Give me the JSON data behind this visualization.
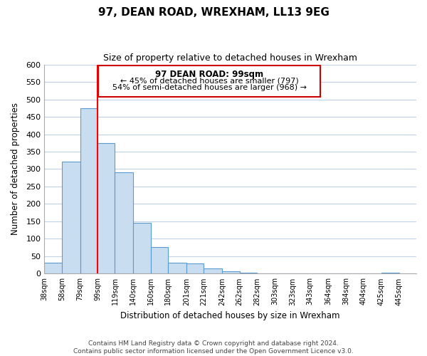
{
  "title": "97, DEAN ROAD, WREXHAM, LL13 9EG",
  "subtitle": "Size of property relative to detached houses in Wrexham",
  "xlabel": "Distribution of detached houses by size in Wrexham",
  "ylabel": "Number of detached properties",
  "bar_left_edges": [
    38,
    58,
    79,
    99,
    119,
    140,
    160,
    180,
    201,
    221,
    242,
    262,
    282,
    303,
    323,
    343,
    364,
    384,
    404,
    425
  ],
  "bar_heights": [
    32,
    322,
    474,
    374,
    291,
    145,
    76,
    32,
    30,
    16,
    8,
    2,
    1,
    0,
    0,
    0,
    0,
    0,
    0,
    3
  ],
  "bar_widths": [
    20,
    21,
    20,
    20,
    21,
    20,
    20,
    21,
    20,
    21,
    20,
    20,
    21,
    20,
    20,
    21,
    20,
    20,
    21,
    20
  ],
  "tick_labels": [
    "38sqm",
    "58sqm",
    "79sqm",
    "99sqm",
    "119sqm",
    "140sqm",
    "160sqm",
    "180sqm",
    "201sqm",
    "221sqm",
    "242sqm",
    "262sqm",
    "282sqm",
    "303sqm",
    "323sqm",
    "343sqm",
    "364sqm",
    "384sqm",
    "404sqm",
    "425sqm",
    "445sqm"
  ],
  "bar_color": "#c9ddf0",
  "bar_edge_color": "#5b9bd5",
  "vline_x": 99,
  "vline_color": "#ff0000",
  "ylim": [
    0,
    600
  ],
  "yticks": [
    0,
    50,
    100,
    150,
    200,
    250,
    300,
    350,
    400,
    450,
    500,
    550,
    600
  ],
  "annotation_title": "97 DEAN ROAD: 99sqm",
  "annotation_line1": "← 45% of detached houses are smaller (797)",
  "annotation_line2": "54% of semi-detached houses are larger (968) →",
  "annotation_box_color": "#ffffff",
  "annotation_box_edge": "#cc0000",
  "footer1": "Contains HM Land Registry data © Crown copyright and database right 2024.",
  "footer2": "Contains public sector information licensed under the Open Government Licence v3.0.",
  "background_color": "#ffffff",
  "grid_color": "#c0d0e8"
}
